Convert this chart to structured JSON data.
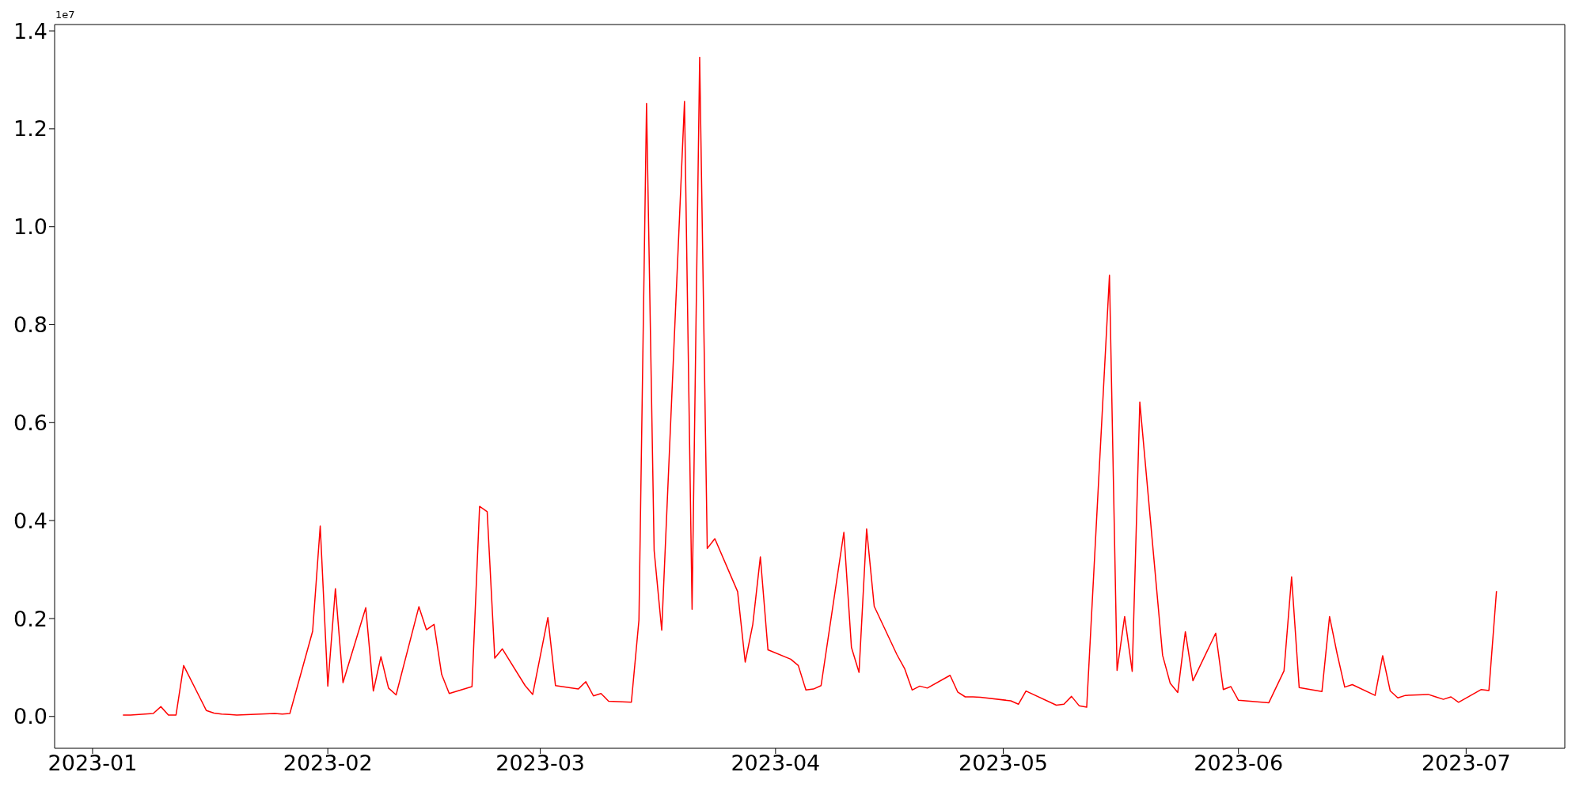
{
  "chart_data": {
    "type": "line",
    "x": [
      "2023-01-05",
      "2023-01-06",
      "2023-01-09",
      "2023-01-10",
      "2023-01-11",
      "2023-01-12",
      "2023-01-13",
      "2023-01-16",
      "2023-01-17",
      "2023-01-18",
      "2023-01-19",
      "2023-01-20",
      "2023-01-25",
      "2023-01-26",
      "2023-01-27",
      "2023-01-30",
      "2023-01-31",
      "2023-02-01",
      "2023-02-02",
      "2023-02-03",
      "2023-02-06",
      "2023-02-07",
      "2023-02-08",
      "2023-02-09",
      "2023-02-10",
      "2023-02-13",
      "2023-02-14",
      "2023-02-15",
      "2023-02-16",
      "2023-02-17",
      "2023-02-20",
      "2023-02-21",
      "2023-02-22",
      "2023-02-23",
      "2023-02-24",
      "2023-02-27",
      "2023-02-28",
      "2023-03-02",
      "2023-03-03",
      "2023-03-06",
      "2023-03-07",
      "2023-03-08",
      "2023-03-09",
      "2023-03-10",
      "2023-03-13",
      "2023-03-14",
      "2023-03-15",
      "2023-03-16",
      "2023-03-17",
      "2023-03-20",
      "2023-03-21",
      "2023-03-22",
      "2023-03-23",
      "2023-03-24",
      "2023-03-27",
      "2023-03-28",
      "2023-03-29",
      "2023-03-30",
      "2023-03-31",
      "2023-04-03",
      "2023-04-04",
      "2023-04-05",
      "2023-04-06",
      "2023-04-07",
      "2023-04-10",
      "2023-04-11",
      "2023-04-12",
      "2023-04-13",
      "2023-04-14",
      "2023-04-17",
      "2023-04-18",
      "2023-04-19",
      "2023-04-20",
      "2023-04-21",
      "2023-04-24",
      "2023-04-25",
      "2023-04-26",
      "2023-04-27",
      "2023-04-28",
      "2023-05-02",
      "2023-05-03",
      "2023-05-04",
      "2023-05-08",
      "2023-05-09",
      "2023-05-10",
      "2023-05-11",
      "2023-05-12",
      "2023-05-15",
      "2023-05-16",
      "2023-05-17",
      "2023-05-18",
      "2023-05-19",
      "2023-05-22",
      "2023-05-23",
      "2023-05-24",
      "2023-05-25",
      "2023-05-26",
      "2023-05-29",
      "2023-05-30",
      "2023-05-31",
      "2023-06-01",
      "2023-06-05",
      "2023-06-07",
      "2023-06-08",
      "2023-06-09",
      "2023-06-12",
      "2023-06-13",
      "2023-06-14",
      "2023-06-15",
      "2023-06-16",
      "2023-06-19",
      "2023-06-20",
      "2023-06-21",
      "2023-06-22",
      "2023-06-23",
      "2023-06-26",
      "2023-06-27",
      "2023-06-28",
      "2023-06-29",
      "2023-06-30",
      "2023-07-03",
      "2023-07-04",
      "2023-07-05"
    ],
    "values": [
      0.003,
      0.003,
      0.006,
      0.02,
      0.003,
      0.003,
      0.104,
      0.012,
      0.007,
      0.005,
      0.004,
      0.003,
      0.006,
      0.005,
      0.006,
      0.174,
      0.389,
      0.062,
      0.261,
      0.069,
      0.222,
      0.052,
      0.122,
      0.058,
      0.044,
      0.224,
      0.177,
      0.188,
      0.086,
      0.047,
      0.061,
      0.429,
      0.418,
      0.119,
      0.138,
      0.063,
      0.045,
      0.202,
      0.063,
      0.056,
      0.071,
      0.042,
      0.047,
      0.031,
      0.029,
      0.197,
      1.252,
      0.339,
      0.176,
      1.256,
      0.219,
      1.346,
      0.343,
      0.363,
      0.255,
      0.111,
      0.188,
      0.326,
      0.136,
      0.117,
      0.104,
      0.054,
      0.056,
      0.063,
      0.376,
      0.141,
      0.09,
      0.383,
      0.225,
      0.126,
      0.098,
      0.054,
      0.062,
      0.058,
      0.084,
      0.05,
      0.04,
      0.04,
      0.039,
      0.032,
      0.025,
      0.052,
      0.023,
      0.025,
      0.041,
      0.022,
      0.019,
      0.901,
      0.094,
      0.204,
      0.092,
      0.642,
      0.125,
      0.068,
      0.049,
      0.173,
      0.073,
      0.17,
      0.055,
      0.061,
      0.033,
      0.028,
      0.093,
      0.285,
      0.059,
      0.051,
      0.204,
      0.128,
      0.06,
      0.065,
      0.043,
      0.124,
      0.052,
      0.038,
      0.043,
      0.045,
      0.04,
      0.035,
      0.04,
      0.029,
      0.055,
      0.053,
      0.256
    ],
    "color": "#ff0000",
    "xlim": [
      "2022-12-27",
      "2023-07-14"
    ],
    "xticks": [
      "2023-01",
      "2023-02",
      "2023-03",
      "2023-04",
      "2023-05",
      "2023-06",
      "2023-07"
    ],
    "ylim": [
      -0.065,
      1.413
    ],
    "yticks": [
      {
        "value": 0,
        "label": "0.0"
      },
      0.2,
      0.4,
      0.6,
      0.8,
      {
        "value": 1,
        "label": "1.0"
      },
      1.2,
      1.4
    ],
    "annotations": [
      "1e7"
    ]
  }
}
